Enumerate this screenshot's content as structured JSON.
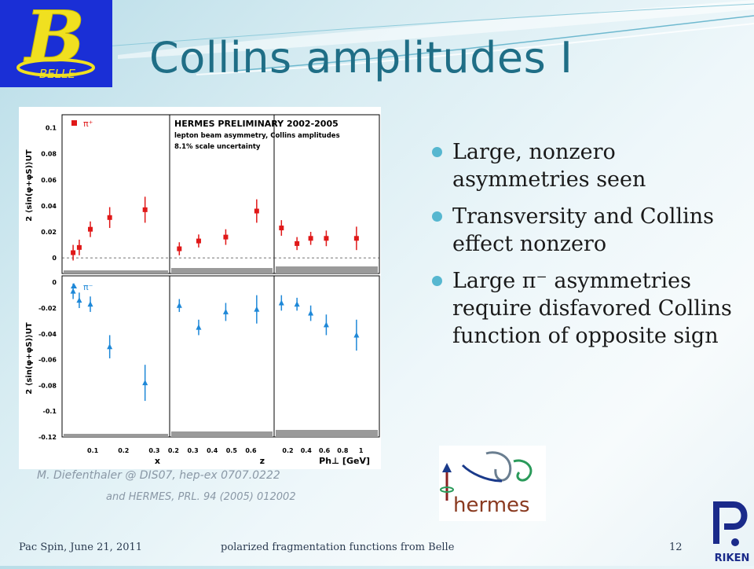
{
  "slide": {
    "title": "Collins amplitudes I",
    "bullets": [
      "Large, nonzero asymmetries seen",
      "Transversity and Collins effect nonzero",
      "Large π⁻ asymmetries require disfavored Collins function of opposite sign"
    ],
    "credit_line1": "M. Diefenthaler @ DIS07, hep-ex 0707.0222",
    "credit_line2": "and HERMES, PRL. 94 (2005) 012002"
  },
  "logos": {
    "belle_letter": "B",
    "belle_text": "BELLE",
    "hermes_text": "hermes",
    "riken_text": "RIKEN"
  },
  "footer": {
    "left": "Pac Spin, June 21, 2011",
    "center": "polarized fragmentation functions from Belle",
    "page": "12"
  },
  "colors": {
    "title": "#1f6e86",
    "pi_plus": "#e01818",
    "pi_minus": "#1e88d8",
    "bullet": "#56b7d0"
  },
  "chart_data": {
    "type": "scatter",
    "title": "HERMES PRELIMINARY 2002-2005",
    "subtitle": [
      "lepton beam asymmetry, Collins amplitudes",
      "8.1% scale uncertainty"
    ],
    "ylabel": "2 ⟨sin(φ+φS)⟩UT",
    "panels_x": [
      {
        "xlabel": "x",
        "ticks": [
          "0.1",
          "0.2",
          "0.3"
        ],
        "xlim": [
          0.0,
          0.35
        ],
        "pi_plus": {
          "x": [
            0.036,
            0.056,
            0.092,
            0.155,
            0.27
          ],
          "y": [
            0.004,
            0.008,
            0.022,
            0.031,
            0.037
          ],
          "err": [
            0.006,
            0.006,
            0.006,
            0.008,
            0.01
          ]
        },
        "pi_minus": {
          "x": [
            0.036,
            0.056,
            0.092,
            0.155,
            0.27
          ],
          "y": [
            -0.007,
            -0.014,
            -0.017,
            -0.05,
            -0.078
          ],
          "err": [
            0.006,
            0.006,
            0.006,
            0.009,
            0.014
          ]
        }
      },
      {
        "xlabel": "z",
        "ticks": [
          "0.2",
          "0.3",
          "0.4",
          "0.5",
          "0.6"
        ],
        "xlim": [
          0.18,
          0.72
        ],
        "pi_plus": {
          "x": [
            0.23,
            0.33,
            0.47,
            0.63
          ],
          "y": [
            0.007,
            0.013,
            0.016,
            0.036
          ],
          "err": [
            0.005,
            0.005,
            0.006,
            0.009
          ]
        },
        "pi_minus": {
          "x": [
            0.23,
            0.33,
            0.47,
            0.63
          ],
          "y": [
            -0.018,
            -0.035,
            -0.023,
            -0.021
          ],
          "err": [
            0.005,
            0.006,
            0.007,
            0.011
          ]
        }
      },
      {
        "xlabel": "Ph⊥ [GeV]",
        "ticks": [
          "0.2",
          "0.4",
          "0.6",
          "0.8",
          "1"
        ],
        "xlim": [
          0.05,
          1.2
        ],
        "pi_plus": {
          "x": [
            0.13,
            0.3,
            0.45,
            0.62,
            0.95
          ],
          "y": [
            0.023,
            0.011,
            0.015,
            0.015,
            0.015
          ],
          "err": [
            0.006,
            0.005,
            0.005,
            0.006,
            0.009
          ]
        },
        "pi_minus": {
          "x": [
            0.13,
            0.3,
            0.45,
            0.62,
            0.95
          ],
          "y": [
            -0.016,
            -0.017,
            -0.024,
            -0.033,
            -0.041
          ],
          "err": [
            0.006,
            0.005,
            0.006,
            0.008,
            0.012
          ]
        }
      }
    ],
    "top_yticks": [
      "0",
      "0.02",
      "0.04",
      "0.06",
      "0.08",
      "0.1"
    ],
    "top_ylim": [
      -0.012,
      0.11
    ],
    "bottom_yticks": [
      "0",
      "-0.02",
      "-0.04",
      "-0.06",
      "-0.08",
      "-0.1",
      "-0.12"
    ],
    "bottom_ylim": [
      -0.12,
      0.005
    ],
    "legend_top": "π⁺",
    "legend_bottom": "π⁻"
  }
}
